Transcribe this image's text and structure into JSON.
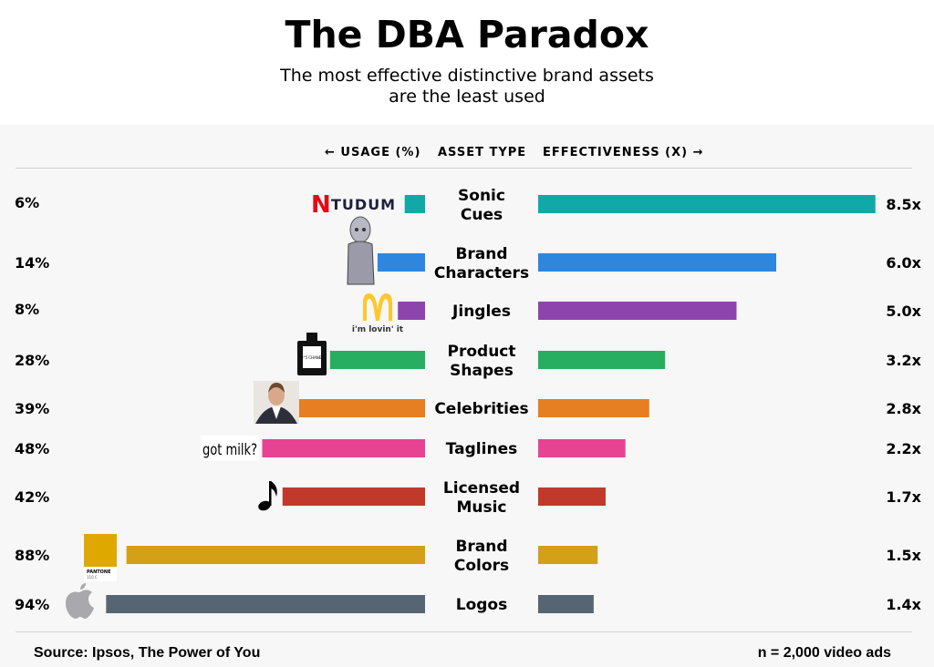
{
  "title": "The DBA Paradox",
  "subtitle_line1": "The most effective distinctive brand assets",
  "subtitle_line2": "are the least used",
  "headers": {
    "usage": "← USAGE (%)",
    "asset": "ASSET TYPE",
    "effectiveness": "EFFECTIVENESS (X) →"
  },
  "footer": {
    "source": "Source: Ipsos, The Power of You",
    "note": "n = 2,000 video ads"
  },
  "chart_data": {
    "type": "bar",
    "categories": [
      [
        "Sonic",
        "Cues"
      ],
      [
        "Brand",
        "Characters"
      ],
      [
        "Jingles"
      ],
      [
        "Product",
        "Shapes"
      ],
      [
        "Celebrities"
      ],
      [
        "Taglines"
      ],
      [
        "Licensed",
        "Music"
      ],
      [
        "Brand",
        "Colors"
      ],
      [
        "Logos"
      ]
    ],
    "usage": [
      6,
      14,
      8,
      28,
      39,
      48,
      42,
      88,
      94
    ],
    "usage_labels": [
      "6%",
      "14%",
      "8%",
      "28%",
      "39%",
      "48%",
      "42%",
      "88%",
      "94%"
    ],
    "effectiveness": [
      8.5,
      6.0,
      5.0,
      3.2,
      2.8,
      2.2,
      1.7,
      1.5,
      1.4
    ],
    "effectiveness_labels": [
      "8.5x",
      "6.0x",
      "5.0x",
      "3.2x",
      "2.8x",
      "2.2x",
      "1.7x",
      "1.5x",
      "1.4x"
    ],
    "colors": [
      "#11a9a7",
      "#2e86de",
      "#8e44ad",
      "#27ae60",
      "#e67e22",
      "#e84393",
      "#c0392b",
      "#d4a017",
      "#566573"
    ],
    "icons": [
      "netflix-tudum-icon",
      "robot-character-icon",
      "mcdonalds-arches-icon",
      "perfume-bottle-icon",
      "celebrity-portrait-icon",
      "got-milk-icon",
      "music-note-icon",
      "pantone-swatch-icon",
      "apple-logo-icon"
    ],
    "logo_texts": [
      "N",
      "TUDUM",
      "i'm lovin' it",
      "N°5 CHANEL",
      "got milk?",
      "PANTONE",
      "110 C"
    ]
  }
}
